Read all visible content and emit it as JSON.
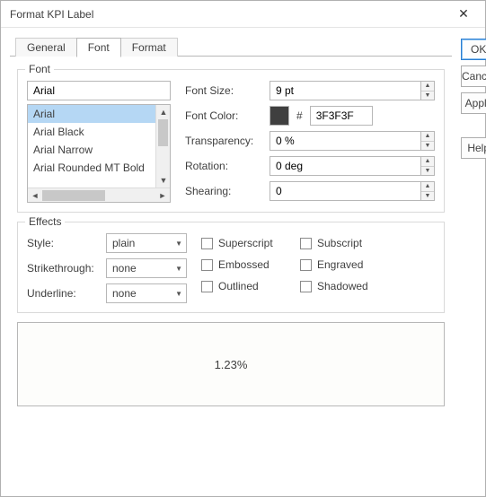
{
  "window": {
    "title": "Format KPI Label"
  },
  "tabs": {
    "general": "General",
    "font": "Font",
    "format": "Format",
    "active": "font"
  },
  "sidebar": {
    "ok": "OK",
    "cancel": "Cancel",
    "apply": "Apply",
    "help": "Help"
  },
  "font_group": {
    "legend": "Font",
    "input_value": "Arial",
    "list": [
      "Arial",
      "Arial Black",
      "Arial Narrow",
      "Arial Rounded MT Bold"
    ],
    "selected_index": 0,
    "labels": {
      "font_size": "Font Size:",
      "font_color": "Font Color:",
      "transparency": "Transparency:",
      "rotation": "Rotation:",
      "shearing": "Shearing:"
    },
    "values": {
      "font_size": "9 pt",
      "color_hex": "3F3F3F",
      "color_swatch": "#3f3f3f",
      "transparency": "0 %",
      "rotation": "0 deg",
      "shearing": "0"
    },
    "hash": "#"
  },
  "effects_group": {
    "legend": "Effects",
    "labels": {
      "style": "Style:",
      "strike": "Strikethrough:",
      "underline": "Underline:"
    },
    "values": {
      "style": "plain",
      "strike": "none",
      "underline": "none"
    },
    "checks": {
      "superscript": "Superscript",
      "subscript": "Subscript",
      "embossed": "Embossed",
      "engraved": "Engraved",
      "outlined": "Outlined",
      "shadowed": "Shadowed"
    }
  },
  "preview": {
    "text": "1.23%"
  },
  "style": {
    "accent": "#2a7ed2",
    "selection_bg": "#b5d7f4",
    "border": "#b7b7b7",
    "text_color": "#3f3f3f",
    "bg": "#ffffff"
  }
}
